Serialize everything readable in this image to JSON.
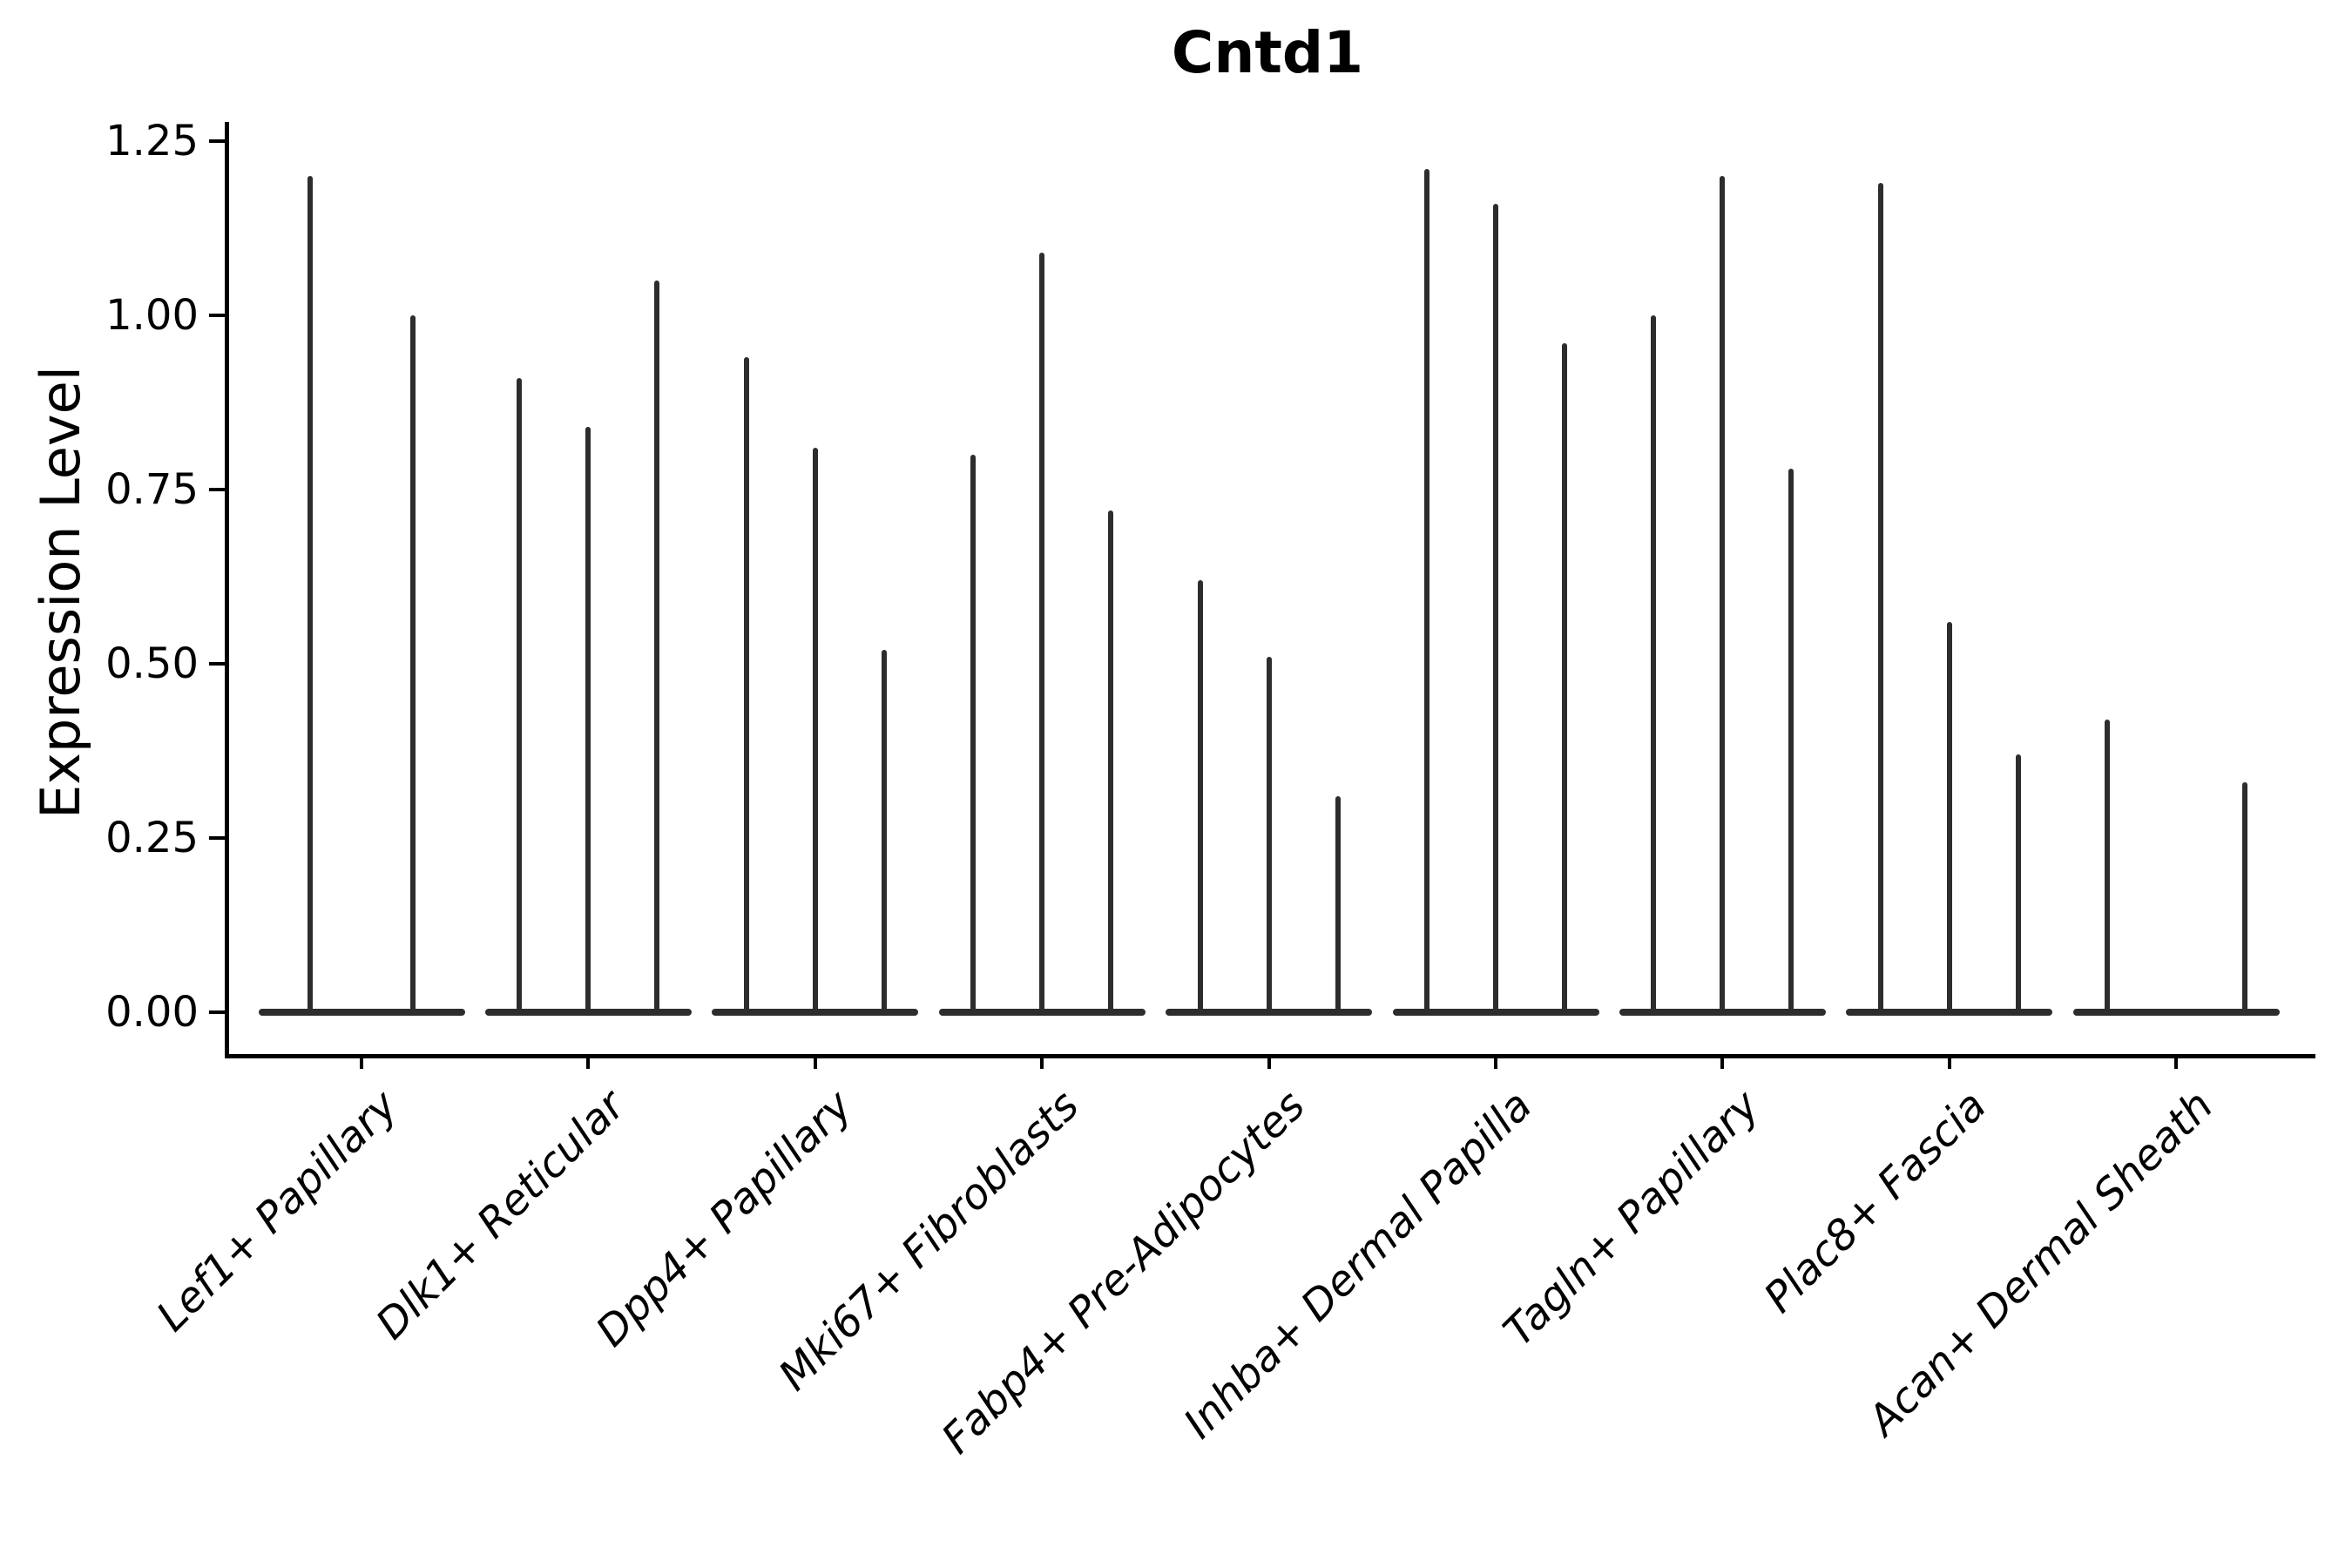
{
  "chart_data": {
    "type": "violin",
    "title": "Cntd1",
    "xlabel": "",
    "ylabel": "Expression Level",
    "ylim": [
      0,
      1.25
    ],
    "grid": false,
    "legend": null,
    "y_ticks": [
      {
        "label": "0.00",
        "value": 0.0
      },
      {
        "label": "0.25",
        "value": 0.25
      },
      {
        "label": "0.50",
        "value": 0.5
      },
      {
        "label": "0.75",
        "value": 0.75
      },
      {
        "label": "1.00",
        "value": 1.0
      },
      {
        "label": "1.25",
        "value": 1.25
      }
    ],
    "categories": [
      "Lef1+ Papillary",
      "Dlk1+ Reticular",
      "Dpp4+ Papillary",
      "Mki67+ Fibroblasts",
      "Fabp4+ Pre-Adipocytes",
      "Inhba+ Dermal Papilla",
      "Tagln+ Papillary",
      "Plac8+ Fascia",
      "Acan+ Dermal Sheath"
    ],
    "groups": [
      {
        "label": "Lef1+ Papillary",
        "slots": 2,
        "spikes": [
          {
            "slot": 0,
            "value": 1.2
          },
          {
            "slot": 1,
            "value": 1.0
          }
        ]
      },
      {
        "label": "Dlk1+ Reticular",
        "slots": 3,
        "spikes": [
          {
            "slot": 0,
            "value": 0.91
          },
          {
            "slot": 1,
            "value": 0.84
          },
          {
            "slot": 2,
            "value": 1.05
          }
        ]
      },
      {
        "label": "Dpp4+ Papillary",
        "slots": 3,
        "spikes": [
          {
            "slot": 0,
            "value": 0.94
          },
          {
            "slot": 1,
            "value": 0.81
          },
          {
            "slot": 2,
            "value": 0.52
          }
        ]
      },
      {
        "label": "Mki67+ Fibroblasts",
        "slots": 3,
        "spikes": [
          {
            "slot": 0,
            "value": 0.8
          },
          {
            "slot": 1,
            "value": 1.09
          },
          {
            "slot": 2,
            "value": 0.72
          }
        ]
      },
      {
        "label": "Fabp4+ Pre-Adipocytes",
        "slots": 3,
        "spikes": [
          {
            "slot": 0,
            "value": 0.62
          },
          {
            "slot": 1,
            "value": 0.51
          },
          {
            "slot": 2,
            "value": 0.31
          }
        ]
      },
      {
        "label": "Inhba+ Dermal Papilla",
        "slots": 3,
        "spikes": [
          {
            "slot": 0,
            "value": 1.21
          },
          {
            "slot": 1,
            "value": 1.16
          },
          {
            "slot": 2,
            "value": 0.96
          }
        ]
      },
      {
        "label": "Tagln+ Papillary",
        "slots": 3,
        "spikes": [
          {
            "slot": 0,
            "value": 1.0
          },
          {
            "slot": 1,
            "value": 1.2
          },
          {
            "slot": 2,
            "value": 0.78
          }
        ]
      },
      {
        "label": "Plac8+ Fascia",
        "slots": 3,
        "spikes": [
          {
            "slot": 0,
            "value": 1.19
          },
          {
            "slot": 1,
            "value": 0.56
          },
          {
            "slot": 2,
            "value": 0.37
          }
        ]
      },
      {
        "label": "Acan+ Dermal Sheath",
        "slots": 3,
        "spikes": [
          {
            "slot": 0,
            "value": 0.42
          },
          {
            "slot": 2,
            "value": 0.33
          }
        ]
      }
    ],
    "colors": {
      "violin": "#2d2d2d",
      "axis": "#000000",
      "text": "#000000",
      "background": "#ffffff"
    }
  }
}
